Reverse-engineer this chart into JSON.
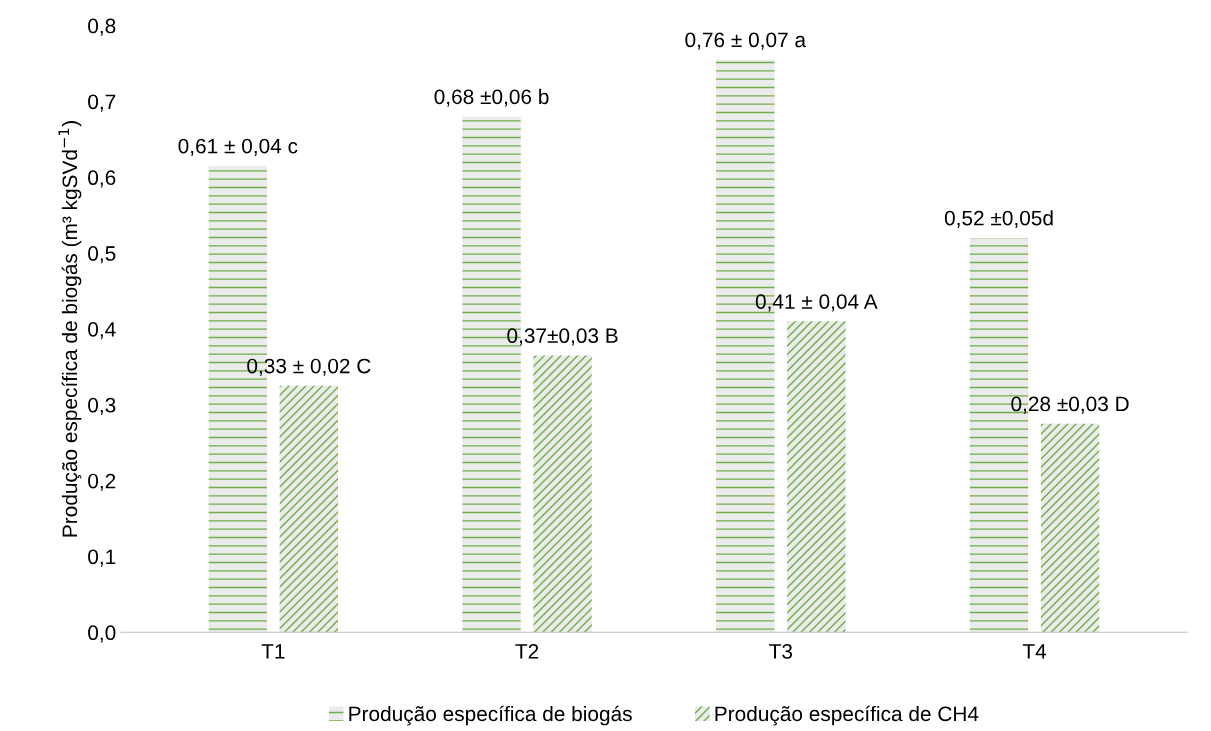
{
  "chart_data": {
    "type": "bar",
    "ylabel": "Produção específica de biogás (m³ kgSVd$^{−1}$)",
    "categories": [
      "T1",
      "T2",
      "T3",
      "T4"
    ],
    "series": [
      {
        "name": "Produção específica de biogás",
        "color": "#70ad47",
        "values": [
          0.615,
          0.68,
          0.755,
          0.52
        ],
        "value_labels": [
          "0,61 ± 0,04 c",
          "0,68 ±0,06 b",
          "0,76 ± 0,07 a",
          "0,52 ±0,05d"
        ]
      },
      {
        "name": "Produção específica de CH4",
        "color": "#70ad47",
        "values": [
          0.325,
          0.365,
          0.41,
          0.275
        ],
        "value_labels": [
          "0,33 ± 0,02 C",
          "0,37±0,03 B",
          "0,41 ± 0,04 A",
          "0,28 ±0,03 D"
        ]
      }
    ],
    "ylim": [
      0,
      0.8
    ],
    "yticks": [
      {
        "value": 0,
        "label": "0,0"
      },
      {
        "value": 0.1,
        "label": "0,1"
      },
      {
        "value": 0.2,
        "label": "0,2"
      },
      {
        "value": 0.3,
        "label": "0,3"
      },
      {
        "value": 0.4,
        "label": "0,4"
      },
      {
        "value": 0.5,
        "label": "0,5"
      },
      {
        "value": 0.6,
        "label": "0,6"
      },
      {
        "value": 0.7,
        "label": "0,7"
      },
      {
        "value": 0.8,
        "label": "0,8"
      }
    ],
    "grid": false,
    "legend": "bottom"
  }
}
